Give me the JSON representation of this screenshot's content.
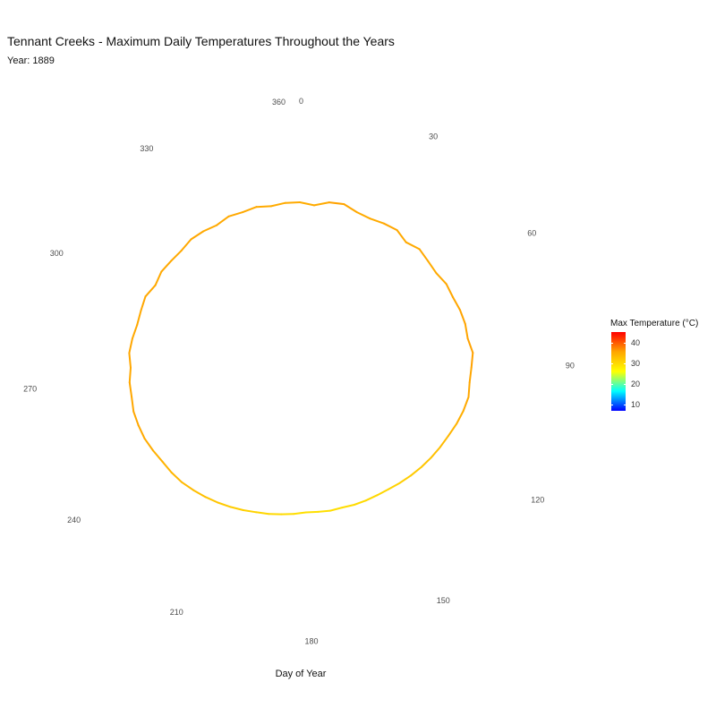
{
  "chart_data": {
    "type": "line",
    "coord": "polar",
    "title": "Tennant Creeks - Maximum Daily Temperatures Throughout the Years",
    "subtitle": "Year: 1889",
    "xlabel": "Day of Year",
    "ylabel": "",
    "xlim": [
      0,
      365
    ],
    "ylim": [
      0,
      45
    ],
    "angle_ticks": [
      0,
      30,
      60,
      90,
      120,
      150,
      180,
      210,
      240,
      270,
      300,
      330,
      360
    ],
    "grid": false,
    "legend": {
      "title": "Max Temperature (°C)",
      "placement": "right",
      "type": "colorbar",
      "ticks": [
        10,
        20,
        30,
        40
      ],
      "range": [
        7,
        45
      ],
      "colors": [
        "#0000ff",
        "#00ffff",
        "#ffff00",
        "#ffa500",
        "#ff0000"
      ]
    },
    "series": [
      {
        "x": [
          0,
          5,
          10,
          15,
          20,
          25,
          30,
          35,
          40,
          45,
          50,
          55,
          60,
          65,
          70,
          75,
          80,
          85,
          90,
          95,
          100,
          105,
          110,
          115,
          120,
          125,
          130,
          135,
          140,
          145,
          150,
          155,
          160,
          165,
          170,
          175,
          180,
          185,
          190,
          195,
          200,
          205,
          210,
          215,
          220,
          225,
          230,
          235,
          240,
          245,
          250,
          255,
          260,
          265,
          270,
          275,
          280,
          285,
          290,
          295,
          300,
          305,
          310,
          315,
          320,
          325,
          330,
          335,
          340,
          345,
          350,
          355,
          360,
          365
        ],
        "y": [
          35.0,
          34.5,
          35.5,
          35.8,
          35.0,
          34.8,
          35.2,
          35.5,
          34.6,
          35.4,
          35.0,
          34.8,
          35.3,
          35.2,
          35.5,
          35.6,
          35.4,
          36.0,
          35.5,
          35.2,
          35.3,
          34.8,
          34.2,
          33.5,
          33.0,
          32.5,
          32.0,
          31.5,
          31.0,
          30.5,
          30.2,
          30.0,
          29.8,
          29.5,
          29.5,
          29.3,
          29.2,
          29.5,
          29.8,
          30.2,
          30.5,
          31.0,
          31.5,
          32.0,
          32.5,
          33.0,
          33.5,
          33.8,
          34.0,
          34.5,
          35.0,
          35.2,
          35.4,
          35.2,
          35.3,
          35.0,
          35.5,
          35.3,
          35.0,
          35.2,
          35.5,
          34.8,
          35.3,
          35.1,
          35.0,
          35.4,
          35.2,
          34.8,
          35.3,
          35.0,
          35.2,
          34.7,
          35.0,
          35.0
        ]
      }
    ]
  }
}
